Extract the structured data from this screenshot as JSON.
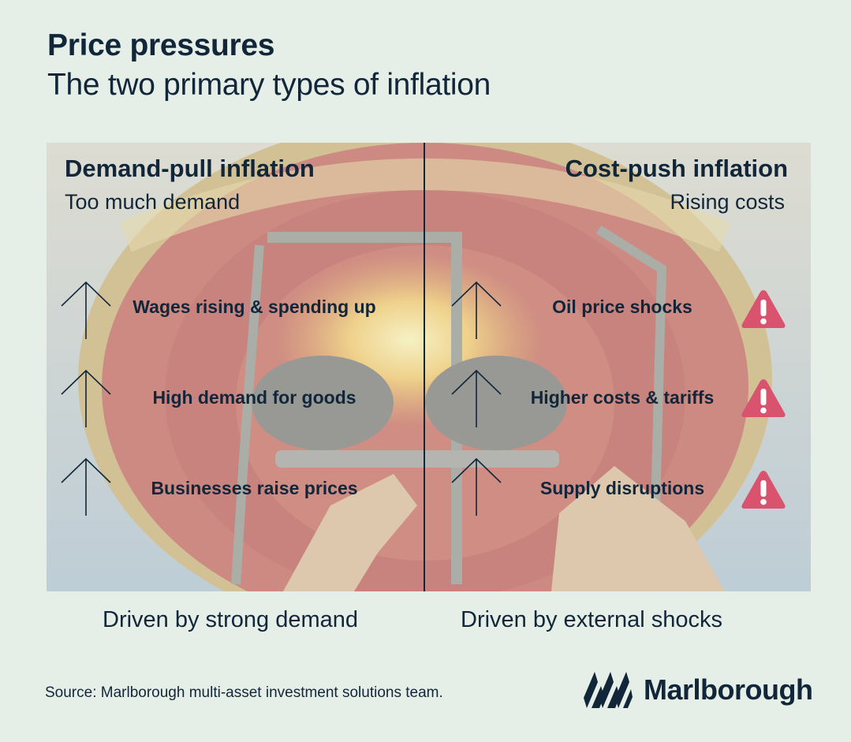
{
  "header": {
    "title": "Price pressures",
    "subtitle": "The two primary types of inflation"
  },
  "left": {
    "title": "Demand-pull inflation",
    "subtitle": "Too much demand",
    "items": [
      "Wages rising & spending up",
      "High demand for goods",
      "Businesses raise prices"
    ],
    "footer": "Driven by strong demand"
  },
  "right": {
    "title": "Cost-push inflation",
    "subtitle": "Rising costs",
    "items": [
      "Oil price shocks",
      "Higher costs & tariffs",
      "Supply disruptions"
    ],
    "footer": "Driven by external shocks"
  },
  "icons": {
    "arrow": "up-arrow-icon",
    "warning": "warning-icon",
    "logo": "marlborough-logo"
  },
  "colors": {
    "ink": "#12263a",
    "warning": "#d9536f",
    "background": "#e6eee8"
  },
  "source": "Source: Marlborough multi-asset investment solutions team.",
  "brand": {
    "name": "Marlborough"
  }
}
